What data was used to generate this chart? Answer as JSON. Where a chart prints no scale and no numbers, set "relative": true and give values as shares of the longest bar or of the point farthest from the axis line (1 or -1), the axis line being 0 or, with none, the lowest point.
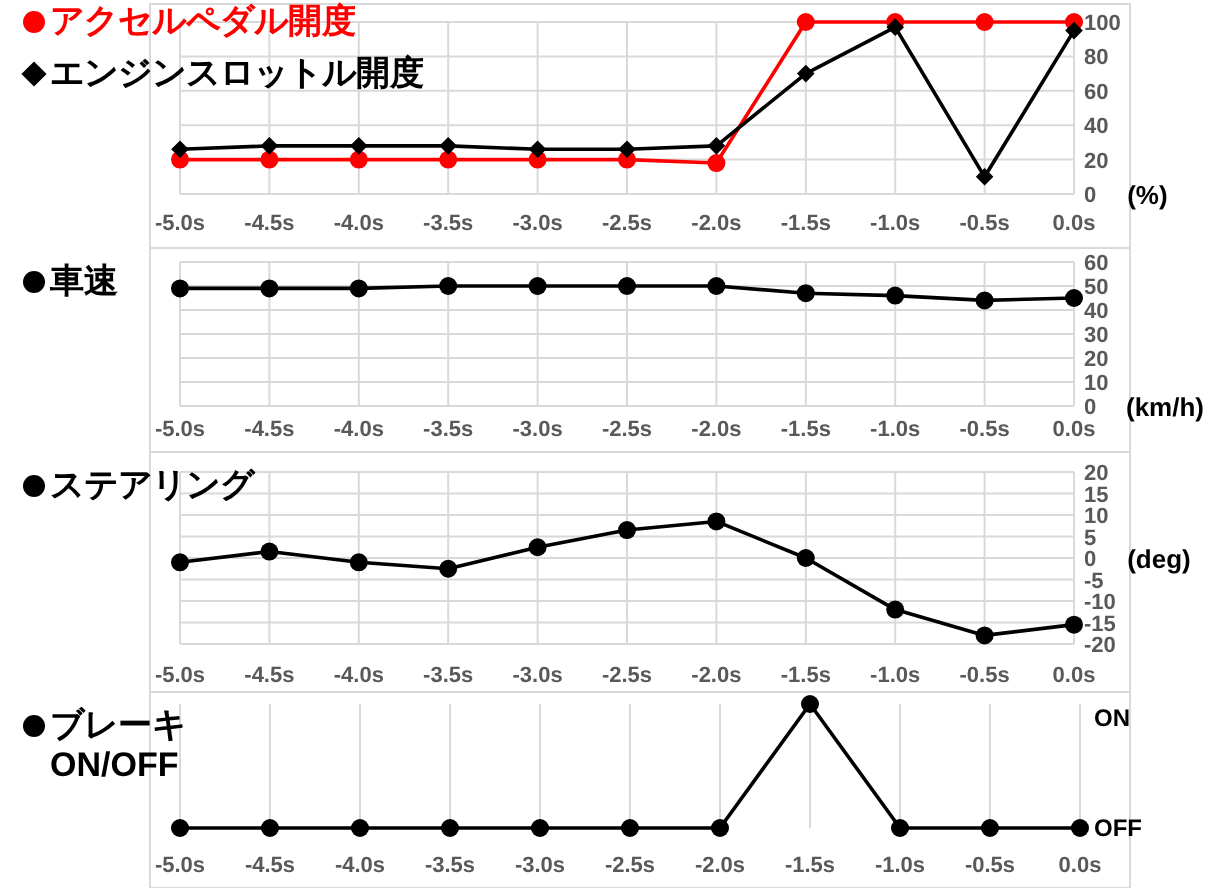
{
  "chart_data": [
    {
      "type": "line",
      "categories": [
        "-5.0s",
        "-4.5s",
        "-4.0s",
        "-3.5s",
        "-3.0s",
        "-2.5s",
        "-2.0s",
        "-1.5s",
        "-1.0s",
        "-0.5s",
        "0.0s"
      ],
      "ylabel": "(%)",
      "ylim": [
        0,
        100
      ],
      "yticks": [
        0,
        20,
        40,
        60,
        80,
        100
      ],
      "grid": true,
      "legend": "left",
      "series": [
        {
          "name": "アクセルペダル開度",
          "color": "#ff0000",
          "marker": "circle",
          "values": [
            20,
            20,
            20,
            20,
            20,
            20,
            18,
            100,
            100,
            100,
            100
          ]
        },
        {
          "name": "エンジンスロットル開度",
          "color": "#000000",
          "marker": "diamond",
          "values": [
            26,
            28,
            28,
            28,
            26,
            26,
            28,
            70,
            97,
            10,
            95
          ]
        }
      ]
    },
    {
      "type": "line",
      "categories": [
        "-5.0s",
        "-4.5s",
        "-4.0s",
        "-3.5s",
        "-3.0s",
        "-2.5s",
        "-2.0s",
        "-1.5s",
        "-1.0s",
        "-0.5s",
        "0.0s"
      ],
      "ylabel": "(km/h)",
      "ylim": [
        0,
        60
      ],
      "yticks": [
        0,
        10,
        20,
        30,
        40,
        50,
        60
      ],
      "grid": true,
      "legend": "left",
      "series": [
        {
          "name": "車速",
          "color": "#000000",
          "marker": "circle",
          "values": [
            49,
            49,
            49,
            50,
            50,
            50,
            50,
            47,
            46,
            44,
            45
          ]
        }
      ]
    },
    {
      "type": "line",
      "categories": [
        "-5.0s",
        "-4.5s",
        "-4.0s",
        "-3.5s",
        "-3.0s",
        "-2.5s",
        "-2.0s",
        "-1.5s",
        "-1.0s",
        "-0.5s",
        "0.0s"
      ],
      "ylabel": "(deg)",
      "ylim": [
        -20,
        20
      ],
      "yticks": [
        -20,
        -15,
        -10,
        -5,
        0,
        5,
        10,
        15,
        20
      ],
      "grid": true,
      "legend": "left",
      "series": [
        {
          "name": "ステアリング",
          "color": "#000000",
          "marker": "circle",
          "values": [
            -1,
            1.5,
            -1,
            -2.5,
            2.5,
            6.5,
            8.5,
            0,
            -12,
            -18,
            -15.5
          ]
        }
      ]
    },
    {
      "type": "line",
      "categories": [
        "-5.0s",
        "-4.5s",
        "-4.0s",
        "-3.5s",
        "-3.0s",
        "-2.5s",
        "-2.0s",
        "-1.5s",
        "-1.0s",
        "-0.5s",
        "0.0s"
      ],
      "relative": true,
      "annotations": [
        "OFF",
        "ON"
      ],
      "grid": "x",
      "legend": "left",
      "series": [
        {
          "name": "ブレーキ ON/OFF",
          "color": "#000000",
          "marker": "circle",
          "values": [
            0,
            0,
            0,
            0,
            0,
            0,
            0,
            1,
            0,
            0,
            0
          ]
        }
      ]
    }
  ]
}
